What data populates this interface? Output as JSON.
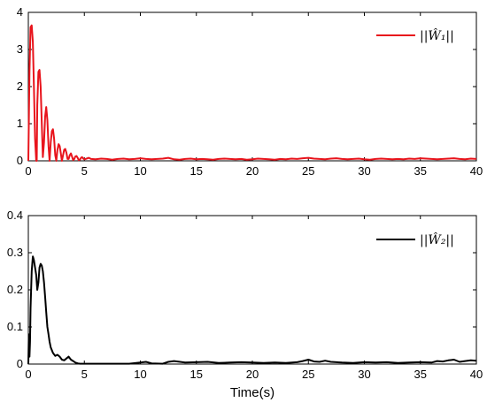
{
  "chart_data": [
    {
      "type": "line",
      "xlabel": "",
      "ylabel": "",
      "xlim": [
        0,
        40
      ],
      "ylim": [
        0,
        4
      ],
      "xticks": [
        "0",
        "5",
        "10",
        "15",
        "20",
        "25",
        "30",
        "35",
        "40"
      ],
      "yticks": [
        "0",
        "1",
        "2",
        "3",
        "4"
      ],
      "grid": false,
      "legend_position": "top-right",
      "series": [
        {
          "name": "||Ŵ₁||",
          "color": "#e8141c",
          "x": [
            0,
            0.1,
            0.2,
            0.3,
            0.4,
            0.5,
            0.6,
            0.7,
            0.75,
            0.8,
            0.9,
            1.0,
            1.1,
            1.2,
            1.3,
            1.4,
            1.5,
            1.6,
            1.7,
            1.8,
            1.9,
            2.0,
            2.1,
            2.2,
            2.3,
            2.4,
            2.5,
            2.6,
            2.7,
            2.8,
            2.9,
            3.0,
            3.1,
            3.2,
            3.3,
            3.4,
            3.5,
            3.6,
            3.7,
            3.8,
            3.9,
            4.0,
            4.1,
            4.2,
            4.3,
            4.4,
            4.5,
            4.6,
            4.7,
            4.8,
            4.9,
            5.0,
            5.2,
            5.4,
            5.6,
            6,
            6.5,
            7,
            7.5,
            8,
            8.5,
            9,
            9.5,
            10,
            10.5,
            11,
            11.5,
            12,
            12.5,
            13,
            13.5,
            14,
            14.5,
            15,
            15.5,
            16,
            16.5,
            17,
            17.5,
            18,
            18.5,
            19,
            19.5,
            20,
            20.5,
            21,
            21.5,
            22,
            22.5,
            23,
            23.5,
            24,
            24.5,
            25,
            25.5,
            26,
            26.5,
            27,
            27.5,
            28,
            28.5,
            29,
            29.5,
            30,
            30.5,
            31,
            31.5,
            32,
            32.5,
            33,
            33.5,
            34,
            34.5,
            35,
            35.5,
            36,
            36.5,
            37,
            37.5,
            38,
            38.5,
            39,
            39.5,
            40
          ],
          "values": [
            0,
            2.4,
            3.6,
            3.65,
            3.2,
            2.0,
            0.6,
            0,
            0,
            1.5,
            2.4,
            2.45,
            2.0,
            1.0,
            0.1,
            0.5,
            1.2,
            1.45,
            1.1,
            0.4,
            0,
            0.5,
            0.8,
            0.85,
            0.6,
            0.15,
            0,
            0.3,
            0.45,
            0.4,
            0.2,
            0,
            0.15,
            0.3,
            0.32,
            0.22,
            0.05,
            0.05,
            0.15,
            0.2,
            0.12,
            0.02,
            0.05,
            0.12,
            0.13,
            0.08,
            0.02,
            0.03,
            0.08,
            0.1,
            0.06,
            0.04,
            0.06,
            0.08,
            0.05,
            0.04,
            0.06,
            0.05,
            0.03,
            0.05,
            0.06,
            0.04,
            0.05,
            0.07,
            0.05,
            0.04,
            0.05,
            0.06,
            0.08,
            0.04,
            0.03,
            0.05,
            0.06,
            0.04,
            0.05,
            0.04,
            0.03,
            0.05,
            0.06,
            0.05,
            0.04,
            0.05,
            0.03,
            0.04,
            0.06,
            0.05,
            0.04,
            0.03,
            0.05,
            0.04,
            0.06,
            0.05,
            0.07,
            0.08,
            0.06,
            0.05,
            0.04,
            0.06,
            0.07,
            0.05,
            0.04,
            0.05,
            0.06,
            0.04,
            0.03,
            0.05,
            0.06,
            0.05,
            0.04,
            0.05,
            0.04,
            0.06,
            0.05,
            0.07,
            0.06,
            0.05,
            0.04,
            0.05,
            0.06,
            0.07,
            0.05,
            0.04,
            0.06,
            0.05
          ]
        }
      ]
    },
    {
      "type": "line",
      "xlabel": "Time(s)",
      "ylabel": "",
      "xlim": [
        0,
        40
      ],
      "ylim": [
        0,
        0.4
      ],
      "xticks": [
        "0",
        "5",
        "10",
        "15",
        "20",
        "25",
        "30",
        "35",
        "40"
      ],
      "yticks": [
        "0",
        "0.1",
        "0.2",
        "0.3",
        "0.4"
      ],
      "grid": false,
      "legend_position": "top-right",
      "series": [
        {
          "name": "||Ŵ₂||",
          "color": "#000000",
          "x": [
            0,
            0.05,
            0.1,
            0.15,
            0.2,
            0.3,
            0.4,
            0.5,
            0.6,
            0.7,
            0.8,
            0.9,
            1.0,
            1.1,
            1.2,
            1.3,
            1.4,
            1.5,
            1.6,
            1.7,
            1.8,
            1.9,
            2.0,
            2.2,
            2.4,
            2.6,
            2.8,
            3.0,
            3.2,
            3.4,
            3.6,
            3.8,
            4.0,
            4.2,
            4.4,
            4.6,
            4.8,
            5.0,
            5.5,
            6,
            7,
            8,
            9,
            10,
            10.5,
            11,
            12,
            12.5,
            13,
            14,
            15,
            16,
            17,
            18,
            19,
            20,
            21,
            22,
            23,
            24,
            24.5,
            25,
            25.5,
            26,
            26.5,
            27,
            27.5,
            28,
            29,
            30,
            31,
            32,
            33,
            34,
            35,
            36,
            36.5,
            37,
            37.5,
            38,
            38.5,
            39,
            39.5,
            40
          ],
          "values": [
            0,
            0.08,
            0.02,
            0.06,
            0.15,
            0.25,
            0.29,
            0.28,
            0.26,
            0.24,
            0.2,
            0.22,
            0.26,
            0.27,
            0.265,
            0.25,
            0.22,
            0.18,
            0.14,
            0.1,
            0.08,
            0.06,
            0.045,
            0.03,
            0.022,
            0.025,
            0.02,
            0.012,
            0.01,
            0.015,
            0.02,
            0.012,
            0.008,
            0.004,
            0.002,
            0.001,
            0.001,
            0.001,
            0.001,
            0.001,
            0.001,
            0.001,
            0.001,
            0.004,
            0.006,
            0.002,
            0.001,
            0.006,
            0.008,
            0.004,
            0.005,
            0.006,
            0.003,
            0.004,
            0.005,
            0.004,
            0.003,
            0.004,
            0.003,
            0.005,
            0.008,
            0.012,
            0.007,
            0.006,
            0.009,
            0.006,
            0.005,
            0.004,
            0.003,
            0.005,
            0.004,
            0.005,
            0.003,
            0.004,
            0.005,
            0.004,
            0.008,
            0.007,
            0.01,
            0.012,
            0.006,
            0.008,
            0.01,
            0.009
          ]
        }
      ]
    }
  ]
}
